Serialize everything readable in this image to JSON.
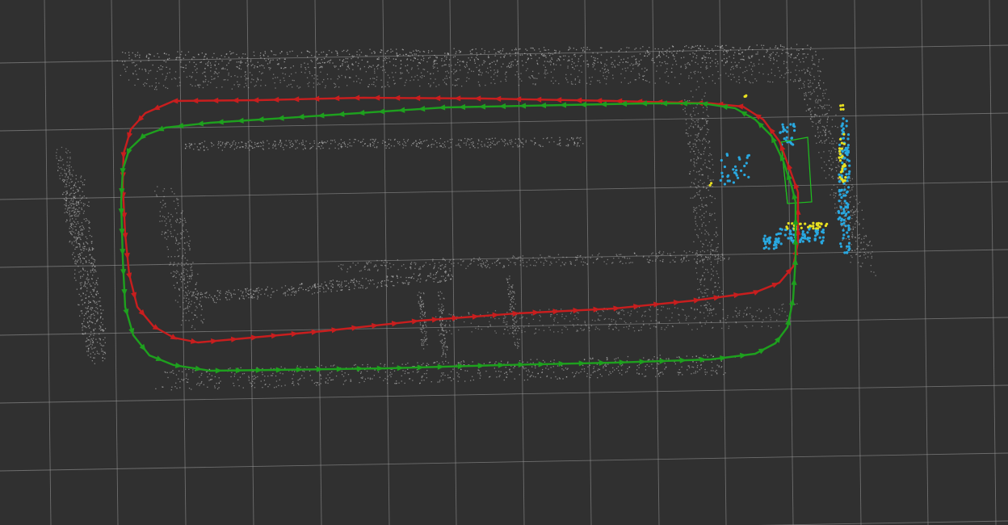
{
  "viewport": {
    "background": "#303030",
    "grid_color": "#a0a0a0",
    "grid_visible": true
  },
  "point_cloud": {
    "color": "#d8d8d8",
    "style": "sparse-dots"
  },
  "trajectories": [
    {
      "name": "red",
      "color": "#c81e1e",
      "marker": "arrow"
    },
    {
      "name": "green",
      "color": "#1ea01e",
      "marker": "arrow"
    }
  ],
  "detections": {
    "cyan_color": "#29a8e0",
    "yellow_color": "#e8e020",
    "box_color": "#20c020"
  }
}
